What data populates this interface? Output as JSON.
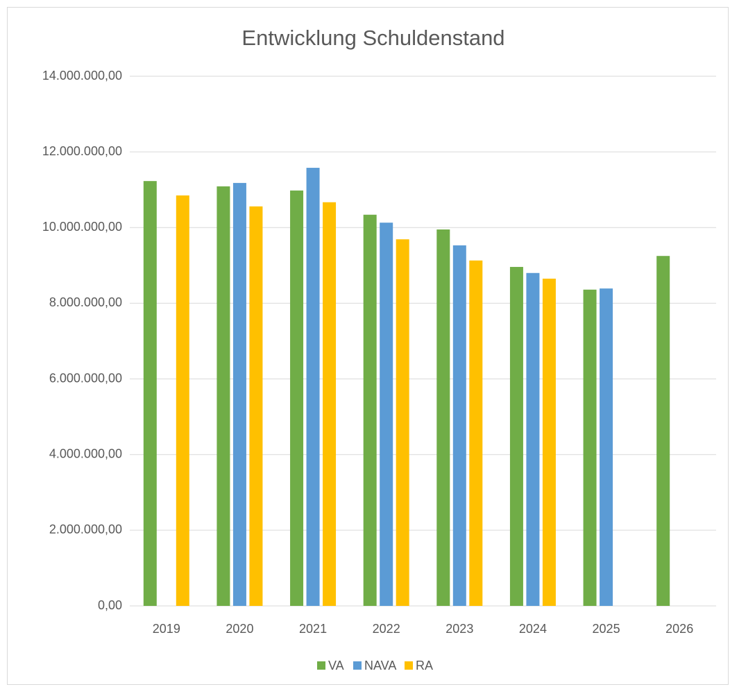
{
  "chart_data": {
    "type": "bar",
    "title": "Entwicklung Schuldenstand",
    "categories": [
      "2019",
      "2020",
      "2021",
      "2022",
      "2023",
      "2024",
      "2025",
      "2026"
    ],
    "series": [
      {
        "name": "VA",
        "color": "#70ad47",
        "values": [
          11230000,
          11090000,
          10980000,
          10340000,
          9950000,
          8960000,
          8360000,
          9250000
        ]
      },
      {
        "name": "NAVA",
        "color": "#5b9bd5",
        "values": [
          null,
          11180000,
          11580000,
          10130000,
          9530000,
          8800000,
          8390000,
          null
        ]
      },
      {
        "name": "RA",
        "color": "#ffc000",
        "values": [
          10850000,
          10560000,
          10670000,
          9690000,
          9130000,
          8650000,
          null,
          null
        ]
      }
    ],
    "ylim": [
      0,
      14000000
    ],
    "yticks": [
      {
        "value": 0,
        "label": "0,00"
      },
      {
        "value": 2000000,
        "label": "2.000.000,00"
      },
      {
        "value": 4000000,
        "label": "4.000.000,00"
      },
      {
        "value": 6000000,
        "label": "6.000.000,00"
      },
      {
        "value": 8000000,
        "label": "8.000.000,00"
      },
      {
        "value": 10000000,
        "label": "10.000.000,00"
      },
      {
        "value": 12000000,
        "label": "12.000.000,00"
      },
      {
        "value": 14000000,
        "label": "14.000.000,00"
      }
    ],
    "grid": true,
    "legend": "bottom"
  }
}
